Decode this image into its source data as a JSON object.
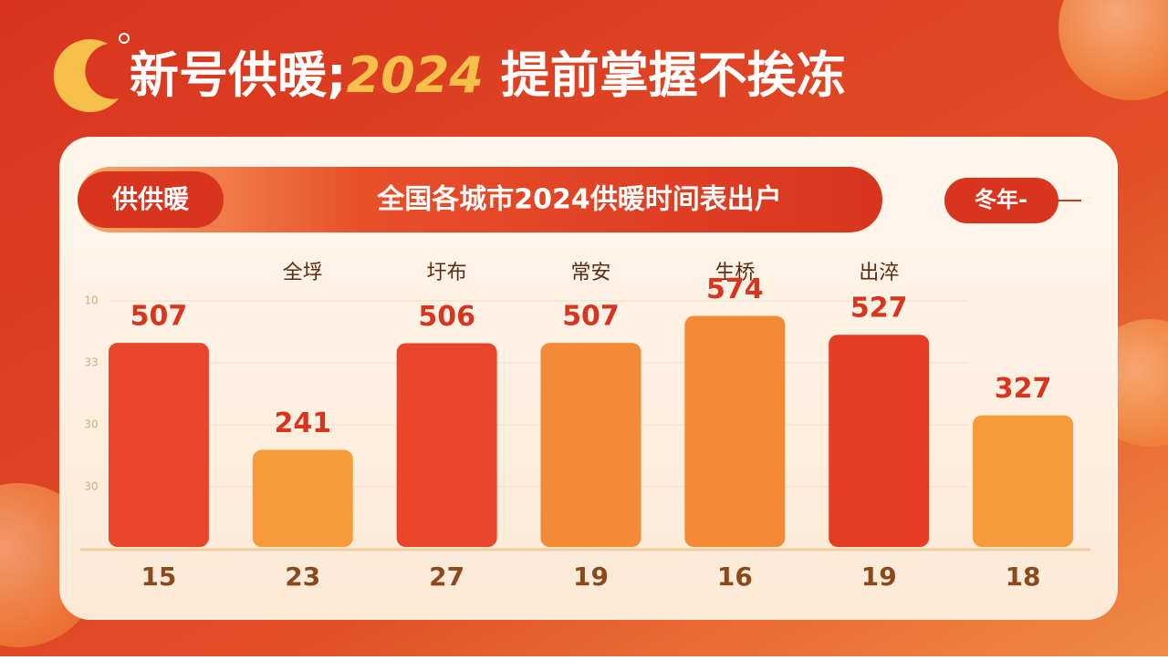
{
  "chart_data": {
    "type": "bar",
    "title_parts": [
      "新号供暖;",
      "2024",
      " 提前掌握不挨冻"
    ],
    "badge": "供供暖",
    "subtitle": "全国各城市2024供暖时间表出户",
    "tag": "冬年-",
    "yaxis_labels": [
      "10",
      "33",
      "30",
      "30"
    ],
    "categories": [
      null,
      "全垺",
      "圩布",
      "常安",
      "生桥",
      "出淬",
      null
    ],
    "values": [
      507,
      241,
      506,
      507,
      574,
      527,
      327
    ],
    "bottom_labels": [
      15,
      23,
      27,
      19,
      16,
      19,
      18
    ],
    "colors": [
      "#e8452a",
      "#f79a3a",
      "#e8452a",
      "#f48a35",
      "#f48a35",
      "#e53d24",
      "#f79a3a"
    ],
    "ylim": [
      0,
      600
    ]
  }
}
